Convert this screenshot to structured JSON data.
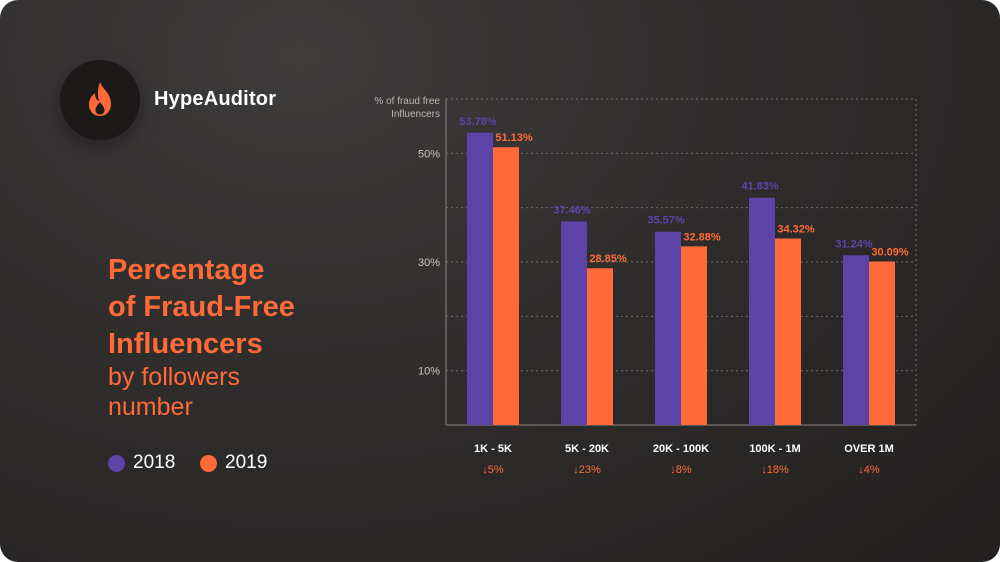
{
  "brand": {
    "name": "HypeAuditor",
    "logo_icon": "flame-icon",
    "logo_color": "#ff6a38"
  },
  "heading": {
    "title_lines": [
      "Percentage",
      "of Fraud-Free",
      "Influencers"
    ],
    "subtitle_lines": [
      "by followers",
      "number"
    ]
  },
  "colors": {
    "series_2018": "#5c43a8",
    "series_2019": "#ff6a38",
    "change": "#ff6a38"
  },
  "chart_data": {
    "type": "bar",
    "ylabel_lines": [
      "% of fraud free",
      "Influencers"
    ],
    "categories": [
      "1K - 5K",
      "5K - 20K",
      "20K - 100K",
      "100K - 1M",
      "OVER 1M"
    ],
    "changes": [
      "5%",
      "23%",
      "8%",
      "18%",
      "4%"
    ],
    "series": [
      {
        "name": "2018",
        "values": [
          53.78,
          37.46,
          35.57,
          41.83,
          31.24
        ],
        "labels": [
          "53.78%",
          "37.46%",
          "35.57%",
          "41.83%",
          "31.24%"
        ]
      },
      {
        "name": "2019",
        "values": [
          51.13,
          28.85,
          32.88,
          34.32,
          30.09
        ],
        "labels": [
          "51.13%",
          "28.85%",
          "32.88%",
          "34.32%",
          "30.09%"
        ]
      }
    ],
    "yticks": [
      {
        "value": 10,
        "label": "10%"
      },
      {
        "value": 30,
        "label": "30%"
      },
      {
        "value": 50,
        "label": "50%"
      }
    ],
    "ylim": [
      0,
      60
    ],
    "gridlines": [
      10,
      20,
      30,
      40,
      50,
      60
    ],
    "grid": true
  }
}
